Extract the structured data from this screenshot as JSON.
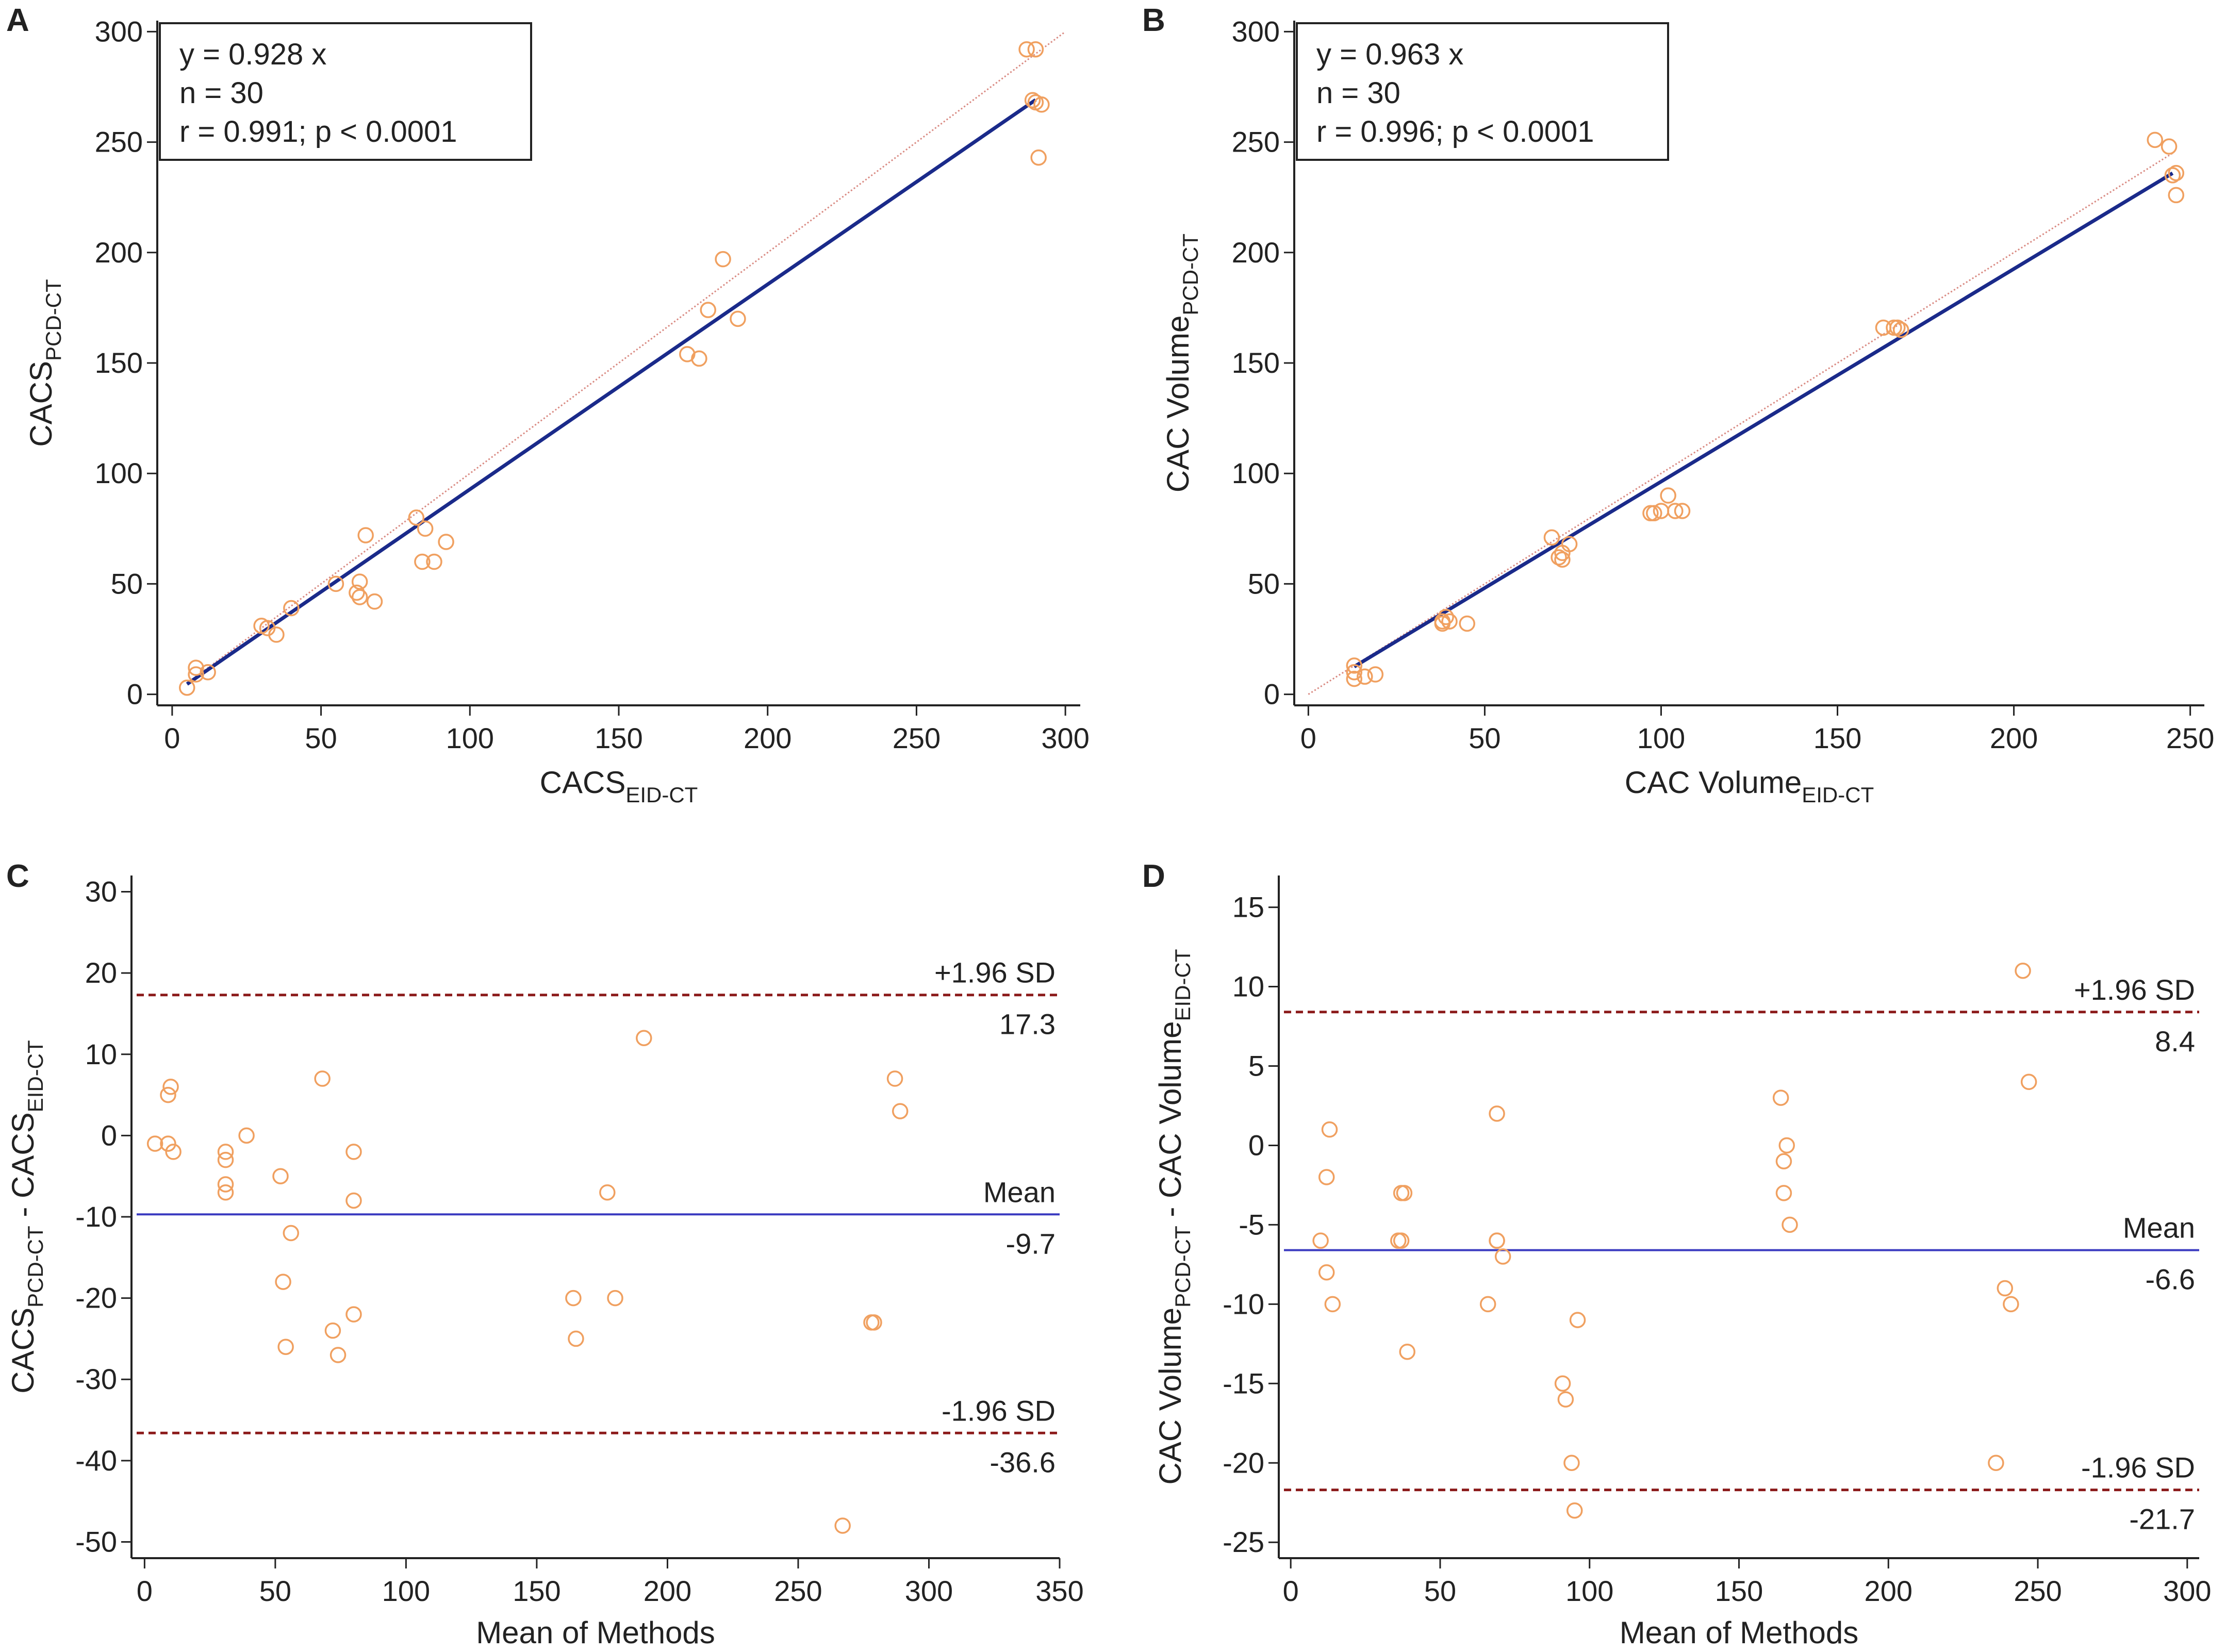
{
  "colors": {
    "regression": "#1a2a8a",
    "identity": "#d98a82",
    "limits": "#8b1a1a",
    "mean_line": "#3a3ac0",
    "points": "#f0a060",
    "axis": "#222222"
  },
  "chart_data": [
    {
      "id": "A",
      "type": "scatter",
      "panel_label": "A",
      "xlabel_main": "CACS",
      "xlabel_sub": "EID-CT",
      "ylabel_main": "CACS",
      "ylabel_sub": "PCD-CT",
      "xlim": [
        -5,
        305
      ],
      "ylim": [
        -5,
        305
      ],
      "xticks": [
        0,
        50,
        100,
        150,
        200,
        250,
        300
      ],
      "yticks": [
        0,
        50,
        100,
        150,
        200,
        250,
        300
      ],
      "stats": [
        "y = 0.928  x",
        "n = 30",
        "r = 0.991; p < 0.0001"
      ],
      "regression": {
        "slope": 0.928,
        "x_range": [
          5,
          290
        ]
      },
      "identity": {
        "x_range": [
          5,
          300
        ]
      },
      "points": [
        [
          5,
          3
        ],
        [
          8,
          12
        ],
        [
          8,
          9
        ],
        [
          12,
          10
        ],
        [
          32,
          30
        ],
        [
          35,
          27
        ],
        [
          40,
          39
        ],
        [
          55,
          50
        ],
        [
          63,
          51
        ],
        [
          63,
          44
        ],
        [
          65,
          72
        ],
        [
          68,
          42
        ],
        [
          82,
          80
        ],
        [
          85,
          75
        ],
        [
          84,
          60
        ],
        [
          88,
          60
        ],
        [
          92,
          69
        ],
        [
          173,
          154
        ],
        [
          177,
          152
        ],
        [
          180,
          174
        ],
        [
          185,
          197
        ],
        [
          190,
          170
        ],
        [
          287,
          292
        ],
        [
          290,
          292
        ],
        [
          290,
          268
        ],
        [
          292,
          267
        ],
        [
          291,
          243
        ],
        [
          289,
          269
        ],
        [
          62,
          46
        ],
        [
          30,
          31
        ]
      ]
    },
    {
      "id": "B",
      "type": "scatter",
      "panel_label": "B",
      "xlabel_main": "CAC Volume",
      "xlabel_sub": "EID-CT",
      "ylabel_main": "CAC Volume",
      "ylabel_sub": "PCD-CT",
      "xlim": [
        -4,
        254
      ],
      "ylim": [
        -5,
        305
      ],
      "xticks": [
        0,
        50,
        100,
        150,
        200,
        250
      ],
      "yticks": [
        0,
        50,
        100,
        150,
        200,
        250,
        300
      ],
      "stats": [
        "y = 0.963  x",
        "n = 30",
        "r = 0.996; p < 0.0001"
      ],
      "regression": {
        "slope": 0.963,
        "x_range": [
          13,
          245
        ]
      },
      "identity": {
        "x_range": [
          0,
          245
        ]
      },
      "points": [
        [
          13,
          13
        ],
        [
          13,
          7
        ],
        [
          13,
          10
        ],
        [
          16,
          8
        ],
        [
          19,
          9
        ],
        [
          38,
          33
        ],
        [
          39,
          35
        ],
        [
          40,
          33
        ],
        [
          45,
          32
        ],
        [
          69,
          71
        ],
        [
          71,
          62
        ],
        [
          72,
          64
        ],
        [
          74,
          68
        ],
        [
          98,
          82
        ],
        [
          100,
          83
        ],
        [
          102,
          90
        ],
        [
          104,
          83
        ],
        [
          106,
          83
        ],
        [
          163,
          166
        ],
        [
          166,
          166
        ],
        [
          168,
          165
        ],
        [
          240,
          251
        ],
        [
          244,
          248
        ],
        [
          245,
          235
        ],
        [
          246,
          236
        ],
        [
          246,
          226
        ],
        [
          72,
          61
        ],
        [
          97,
          82
        ],
        [
          38,
          32
        ],
        [
          167,
          166
        ]
      ]
    },
    {
      "id": "C",
      "type": "scatter",
      "panel_label": "C",
      "xlabel_main": "Mean of Methods",
      "ylabel_parts": [
        "CACS",
        "PCD-CT",
        " - CACS",
        "EID-CT"
      ],
      "xlim": [
        -5,
        350
      ],
      "ylim": [
        -52,
        32
      ],
      "xticks": [
        0,
        50,
        100,
        150,
        200,
        250,
        300,
        350
      ],
      "yticks": [
        -50,
        -40,
        -30,
        -20,
        -10,
        0,
        10,
        20,
        30
      ],
      "ref_lines": [
        {
          "key": "upper",
          "value": 17.3,
          "label": "+1.96 SD",
          "value_label": "17.3"
        },
        {
          "key": "mean",
          "value": -9.7,
          "label": "Mean",
          "value_label": "-9.7"
        },
        {
          "key": "lower",
          "value": -36.6,
          "label": "-1.96 SD",
          "value_label": "-36.6"
        }
      ],
      "points": [
        [
          4,
          -1
        ],
        [
          9,
          -1
        ],
        [
          9,
          5
        ],
        [
          10,
          6
        ],
        [
          11,
          -2
        ],
        [
          31,
          -2
        ],
        [
          31,
          -3
        ],
        [
          31,
          -6
        ],
        [
          31,
          -7
        ],
        [
          39,
          0
        ],
        [
          52,
          -5
        ],
        [
          53,
          -18
        ],
        [
          54,
          -26
        ],
        [
          56,
          -12
        ],
        [
          68,
          7
        ],
        [
          72,
          -24
        ],
        [
          74,
          -27
        ],
        [
          80,
          -2
        ],
        [
          80,
          -8
        ],
        [
          80,
          -22
        ],
        [
          164,
          -20
        ],
        [
          165,
          -25
        ],
        [
          177,
          -7
        ],
        [
          180,
          -20
        ],
        [
          191,
          12
        ],
        [
          267,
          -48
        ],
        [
          278,
          -23
        ],
        [
          279,
          -23
        ],
        [
          287,
          7
        ],
        [
          289,
          3
        ]
      ]
    },
    {
      "id": "D",
      "type": "scatter",
      "panel_label": "D",
      "xlabel_main": "Mean of Methods",
      "ylabel_parts": [
        "CAC Volume",
        "PCD-CT",
        " - CAC Volume",
        "EID-CT"
      ],
      "xlim": [
        -4,
        304
      ],
      "ylim": [
        -26,
        17
      ],
      "xticks": [
        0,
        50,
        100,
        150,
        200,
        250,
        300
      ],
      "yticks": [
        -25,
        -20,
        -15,
        -10,
        -5,
        0,
        5,
        10,
        15
      ],
      "ref_lines": [
        {
          "key": "upper",
          "value": 8.4,
          "label": "+1.96 SD",
          "value_label": "8.4"
        },
        {
          "key": "mean",
          "value": -6.6,
          "label": "Mean",
          "value_label": "-6.6"
        },
        {
          "key": "lower",
          "value": -21.7,
          "label": "-1.96 SD",
          "value_label": "-21.7"
        }
      ],
      "points": [
        [
          10,
          -6
        ],
        [
          12,
          -2
        ],
        [
          13,
          1
        ],
        [
          12,
          -8
        ],
        [
          14,
          -10
        ],
        [
          36,
          -6
        ],
        [
          37,
          -3
        ],
        [
          38,
          -3
        ],
        [
          37,
          -6
        ],
        [
          39,
          -13
        ],
        [
          66,
          -10
        ],
        [
          69,
          -6
        ],
        [
          69,
          2
        ],
        [
          71,
          -7
        ],
        [
          91,
          -15
        ],
        [
          92,
          -16
        ],
        [
          94,
          -20
        ],
        [
          95,
          -23
        ],
        [
          96,
          -11
        ],
        [
          164,
          3
        ],
        [
          165,
          -1
        ],
        [
          166,
          0
        ],
        [
          165,
          -3
        ],
        [
          167,
          -5
        ],
        [
          236,
          -20
        ],
        [
          239,
          -9
        ],
        [
          241,
          -10
        ],
        [
          245,
          11
        ],
        [
          247,
          4
        ],
        [
          69,
          -6
        ]
      ]
    }
  ]
}
